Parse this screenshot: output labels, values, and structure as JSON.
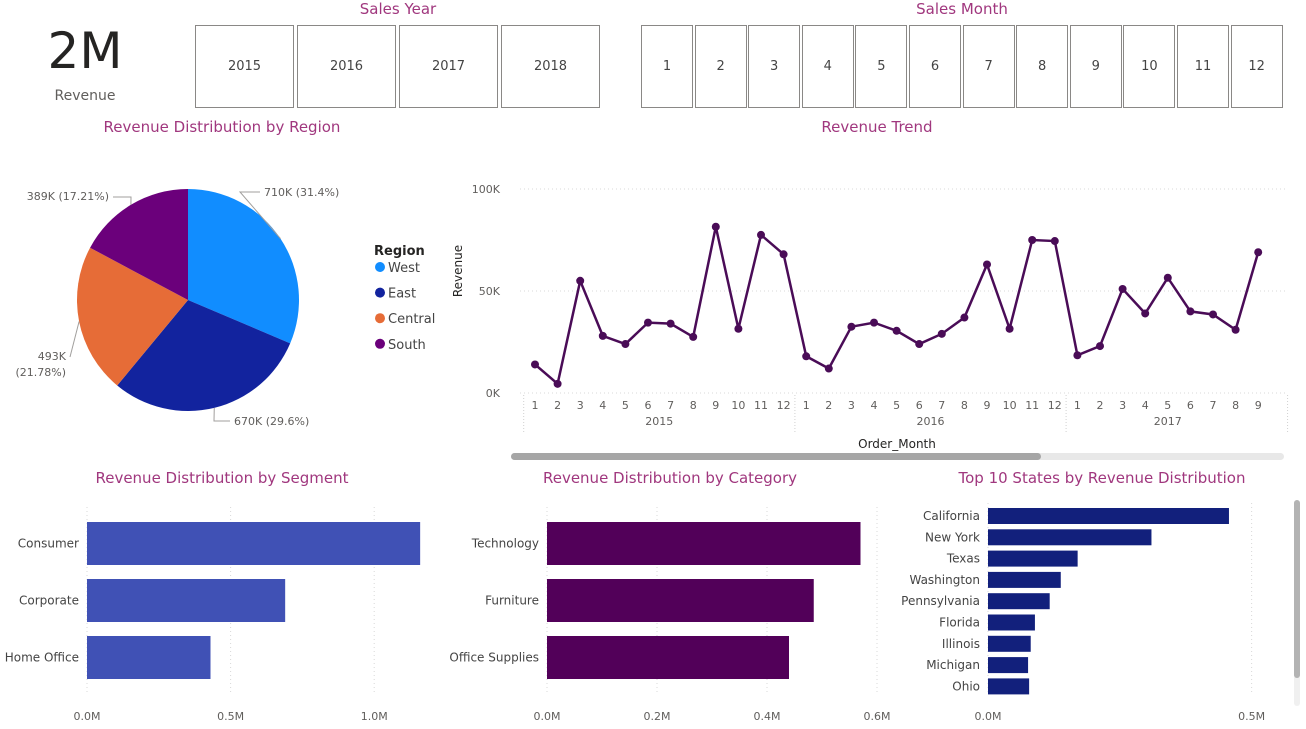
{
  "kpi": {
    "value": "2M",
    "label": "Revenue"
  },
  "sales_year": {
    "title": "Sales Year",
    "options": [
      "2015",
      "2016",
      "2017",
      "2018"
    ]
  },
  "sales_month": {
    "title": "Sales Month",
    "options": [
      "1",
      "2",
      "3",
      "4",
      "5",
      "6",
      "7",
      "8",
      "9",
      "10",
      "11",
      "12"
    ]
  },
  "colors": {
    "accent_title": "#a0377e",
    "west": "#118dff",
    "east": "#12239e",
    "central": "#e66c37",
    "south": "#6b007b",
    "trend_line": "#4a0c57",
    "segment_bar": "#4051b5",
    "category_bar": "#520059",
    "states_bar": "#12207c"
  },
  "chart_data": [
    {
      "type": "pie",
      "title": "Revenue Distribution by Region",
      "legend_title": "Region",
      "legend_position": "right",
      "slices": [
        {
          "name": "West",
          "value": 710,
          "label": "710K (31.4%)",
          "color": "#118dff"
        },
        {
          "name": "East",
          "value": 670,
          "label": "670K (29.6%)",
          "color": "#12239e"
        },
        {
          "name": "Central",
          "value": 493,
          "label": "493K",
          "label2": "(21.78%)",
          "color": "#e66c37"
        },
        {
          "name": "South",
          "value": 389,
          "label": "389K (17.21%)",
          "color": "#6b007b"
        }
      ]
    },
    {
      "type": "line",
      "title": "Revenue Trend",
      "xlabel": "Order_Month",
      "ylabel": "Revenue",
      "ylim": [
        0,
        100000
      ],
      "yticks": [
        {
          "v": 0,
          "label": "0K"
        },
        {
          "v": 50000,
          "label": "50K"
        },
        {
          "v": 100000,
          "label": "100K"
        }
      ],
      "years": [
        {
          "label": "2015",
          "start": 0,
          "count": 12
        },
        {
          "label": "2016",
          "start": 12,
          "count": 12
        },
        {
          "label": "2017",
          "start": 24,
          "count": 9
        }
      ],
      "x": [
        "1",
        "2",
        "3",
        "4",
        "5",
        "6",
        "7",
        "8",
        "9",
        "10",
        "11",
        "12",
        "1",
        "2",
        "3",
        "4",
        "5",
        "6",
        "7",
        "8",
        "9",
        "10",
        "11",
        "12",
        "1",
        "2",
        "3",
        "4",
        "5",
        "6",
        "7",
        "8",
        "9"
      ],
      "values": [
        14000,
        4500,
        55000,
        28000,
        24000,
        34500,
        34000,
        27500,
        81500,
        31500,
        77500,
        68000,
        18000,
        12000,
        32500,
        34500,
        30500,
        24000,
        29000,
        37000,
        63000,
        31500,
        75000,
        74500,
        18500,
        23000,
        51000,
        39000,
        56500,
        40000,
        38500,
        31000,
        69000
      ]
    },
    {
      "type": "bar",
      "title": "Revenue Distribution by Segment",
      "categories": [
        "Consumer",
        "Corporate",
        "Home Office"
      ],
      "values": [
        1.16,
        0.69,
        0.43
      ],
      "xlim": [
        0,
        1.25
      ],
      "xticks": [
        {
          "v": 0,
          "label": "0.0M"
        },
        {
          "v": 0.5,
          "label": "0.5M"
        },
        {
          "v": 1.0,
          "label": "1.0M"
        }
      ]
    },
    {
      "type": "bar",
      "title": "Revenue Distribution by Category",
      "categories": [
        "Technology",
        "Furniture",
        "Office Supplies"
      ],
      "values": [
        0.57,
        0.485,
        0.44
      ],
      "xlim": [
        0,
        0.6
      ],
      "xticks": [
        {
          "v": 0,
          "label": "0.0M"
        },
        {
          "v": 0.2,
          "label": "0.2M"
        },
        {
          "v": 0.4,
          "label": "0.4M"
        },
        {
          "v": 0.6,
          "label": "0.6M"
        }
      ]
    },
    {
      "type": "bar",
      "title": "Top 10 States by Revenue Distribution",
      "categories": [
        "California",
        "New York",
        "Texas",
        "Washington",
        "Pennsylvania",
        "Florida",
        "Illinois",
        "Michigan",
        "Ohio"
      ],
      "values": [
        0.457,
        0.31,
        0.17,
        0.138,
        0.117,
        0.089,
        0.081,
        0.076,
        0.078
      ],
      "xlim": [
        0,
        0.55
      ],
      "xticks": [
        {
          "v": 0,
          "label": "0.0M"
        },
        {
          "v": 0.5,
          "label": "0.5M"
        }
      ]
    }
  ]
}
